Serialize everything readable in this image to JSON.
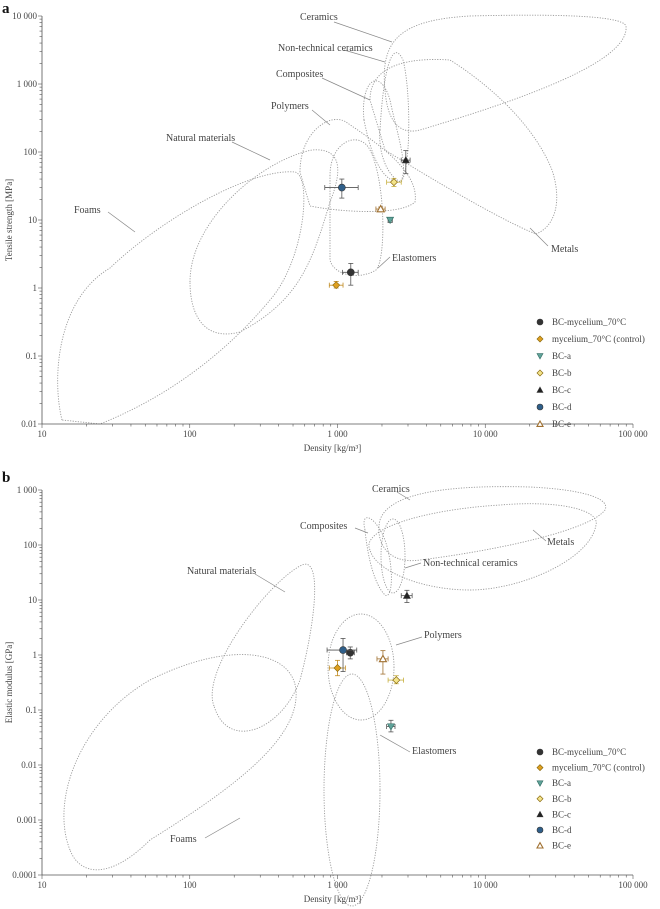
{
  "chart_data": [
    {
      "panel": "a",
      "type": "scatter",
      "xlabel": "Density [kg/m³]",
      "ylabel": "Tensile strength [MPa]",
      "xscale": "log",
      "yscale": "log",
      "xlim": [
        10,
        100000
      ],
      "ylim": [
        0.01,
        10000
      ],
      "xticks": [
        "10",
        "100",
        "1 000",
        "10 000",
        "100 000"
      ],
      "yticks": [
        "0.01",
        "0.1",
        "1",
        "10",
        "100",
        "1 000",
        "10 000"
      ],
      "grid": false,
      "legend": "bottom-right",
      "regions": [
        "Ceramics",
        "Non-technical ceramics",
        "Composites",
        "Polymers",
        "Natural materials",
        "Foams",
        "Elastomers",
        "Metals"
      ],
      "series": [
        {
          "name": "BC-mycelium_70°C",
          "marker": "circle",
          "color": "#333333",
          "x": 1230,
          "y": 1.7,
          "xerr": [
            1080,
            1380
          ],
          "yerr": [
            1.1,
            2.3
          ]
        },
        {
          "name": "mycelium_70°C (control)",
          "marker": "diamond",
          "color": "#e0a020",
          "x": 980,
          "y": 1.1,
          "xerr": [
            880,
            1090
          ],
          "yerr": [
            1.0,
            1.25
          ]
        },
        {
          "name": "BC-a",
          "marker": "triangle-down",
          "color": "#5fa39a",
          "x": 2270,
          "y": 10,
          "xerr": [
            2200,
            2350
          ],
          "yerr": [
            9.2,
            10.8
          ]
        },
        {
          "name": "BC-b",
          "marker": "diamond",
          "color": "#f3e48a",
          "x": 2410,
          "y": 36,
          "xerr": [
            2150,
            2700
          ],
          "yerr": [
            31,
            41
          ]
        },
        {
          "name": "BC-c",
          "marker": "triangle-up",
          "color": "#222222",
          "x": 2900,
          "y": 76,
          "xerr": [
            2700,
            3100
          ],
          "yerr": [
            48,
            105
          ]
        },
        {
          "name": "BC-d",
          "marker": "circle",
          "color": "#2f5f8a",
          "x": 1070,
          "y": 30,
          "xerr": [
            820,
            1380
          ],
          "yerr": [
            21,
            40
          ]
        },
        {
          "name": "BC-e",
          "marker": "triangle-open",
          "color": "#a07030",
          "x": 1960,
          "y": 14.5,
          "xerr": [
            1820,
            2100
          ],
          "yerr": [
            13.5,
            15.5
          ]
        }
      ]
    },
    {
      "panel": "b",
      "type": "scatter",
      "xlabel": "Density [kg/m³]",
      "ylabel": "Elastic modulus [GPa]",
      "xscale": "log",
      "yscale": "log",
      "xlim": [
        10,
        100000
      ],
      "ylim": [
        0.0001,
        1000
      ],
      "xticks": [
        "10",
        "100",
        "1 000",
        "10 000",
        "100 000"
      ],
      "yticks": [
        "0.0001",
        "0.001",
        "0.01",
        "0.1",
        "1",
        "10",
        "100",
        "1 000"
      ],
      "grid": false,
      "legend": "bottom-right",
      "regions": [
        "Ceramics",
        "Composites",
        "Metals",
        "Non-technical ceramics",
        "Natural materials",
        "Polymers",
        "Elastomers",
        "Foams"
      ],
      "series": [
        {
          "name": "BC-mycelium_70°C",
          "marker": "circle",
          "color": "#333333",
          "x": 1220,
          "y": 1.1,
          "xerr": [
            1150,
            1300
          ],
          "yerr": [
            0.85,
            1.4
          ]
        },
        {
          "name": "mycelium_70°C (control)",
          "marker": "diamond",
          "color": "#e0a020",
          "x": 1000,
          "y": 0.58,
          "xerr": [
            880,
            1130
          ],
          "yerr": [
            0.42,
            0.8
          ]
        },
        {
          "name": "BC-a",
          "marker": "triangle-down",
          "color": "#5fa39a",
          "x": 2300,
          "y": 0.05,
          "xerr": [
            2150,
            2450
          ],
          "yerr": [
            0.04,
            0.065
          ]
        },
        {
          "name": "BC-b",
          "marker": "diamond",
          "color": "#f3e48a",
          "x": 2500,
          "y": 0.35,
          "xerr": [
            2200,
            2800
          ],
          "yerr": [
            0.3,
            0.42
          ]
        },
        {
          "name": "BC-c",
          "marker": "triangle-up",
          "color": "#222222",
          "x": 2950,
          "y": 12,
          "xerr": [
            2700,
            3200
          ],
          "yerr": [
            9,
            15
          ]
        },
        {
          "name": "BC-d",
          "marker": "circle",
          "color": "#2f5f8a",
          "x": 1090,
          "y": 1.23,
          "xerr": [
            850,
            1350
          ],
          "yerr": [
            0.5,
            2.0
          ]
        },
        {
          "name": "BC-e",
          "marker": "triangle-open",
          "color": "#a07030",
          "x": 2030,
          "y": 0.85,
          "xerr": [
            1850,
            2200
          ],
          "yerr": [
            0.45,
            1.2
          ]
        }
      ]
    }
  ]
}
